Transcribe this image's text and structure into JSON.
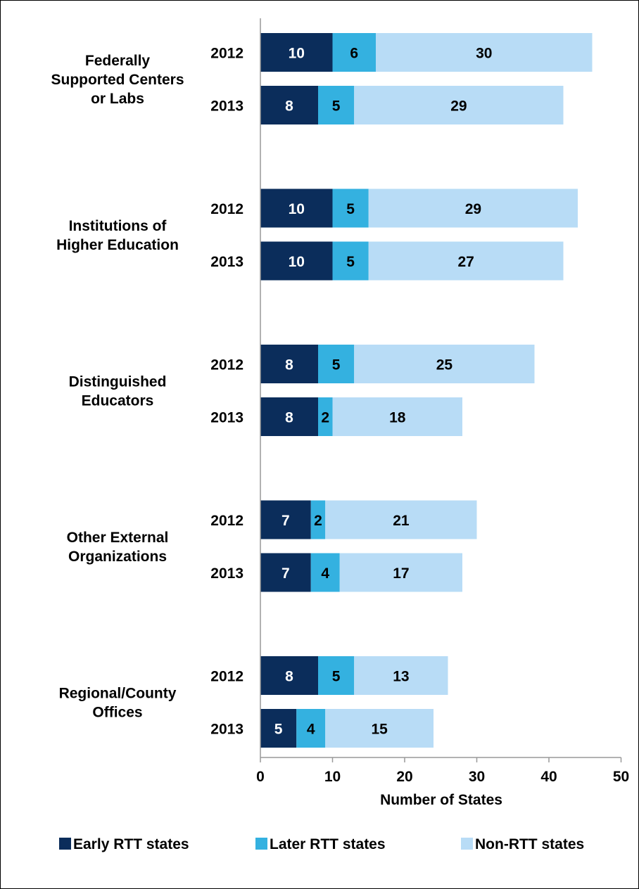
{
  "chart_data": {
    "type": "bar",
    "orientation": "horizontal",
    "stacked": true,
    "title": "",
    "xlabel": "Number of States",
    "ylabel": "",
    "xlim": [
      0,
      50
    ],
    "x_ticks": [
      "0",
      "10",
      "20",
      "30",
      "40",
      "50"
    ],
    "grid": false,
    "legend_position": "bottom",
    "groups": [
      {
        "label_lines": [
          "Federally",
          "Supported Centers",
          "or Labs"
        ],
        "rows": [
          {
            "year": "2012",
            "values": [
              10,
              6,
              30
            ]
          },
          {
            "year": "2013",
            "values": [
              8,
              5,
              29
            ]
          }
        ]
      },
      {
        "label_lines": [
          "Institutions of",
          "Higher Education"
        ],
        "rows": [
          {
            "year": "2012",
            "values": [
              10,
              5,
              29
            ]
          },
          {
            "year": "2013",
            "values": [
              10,
              5,
              27
            ]
          }
        ]
      },
      {
        "label_lines": [
          "Distinguished",
          "Educators"
        ],
        "rows": [
          {
            "year": "2012",
            "values": [
              8,
              5,
              25
            ]
          },
          {
            "year": "2013",
            "values": [
              8,
              2,
              18
            ]
          }
        ]
      },
      {
        "label_lines": [
          "Other External",
          "Organizations"
        ],
        "rows": [
          {
            "year": "2012",
            "values": [
              7,
              2,
              21
            ]
          },
          {
            "year": "2013",
            "values": [
              7,
              4,
              17
            ]
          }
        ]
      },
      {
        "label_lines": [
          "Regional/County",
          "Offices"
        ],
        "rows": [
          {
            "year": "2012",
            "values": [
              8,
              5,
              13
            ]
          },
          {
            "year": "2013",
            "values": [
              5,
              4,
              15
            ]
          }
        ]
      }
    ],
    "series": [
      {
        "name": "Early RTT states",
        "color": "#0b2d5b",
        "label_color": "#ffffff"
      },
      {
        "name": "Later RTT states",
        "color": "#34b1e0",
        "label_color": "#000000"
      },
      {
        "name": "Non-RTT states",
        "color": "#b8dcf6",
        "label_color": "#000000"
      }
    ]
  }
}
